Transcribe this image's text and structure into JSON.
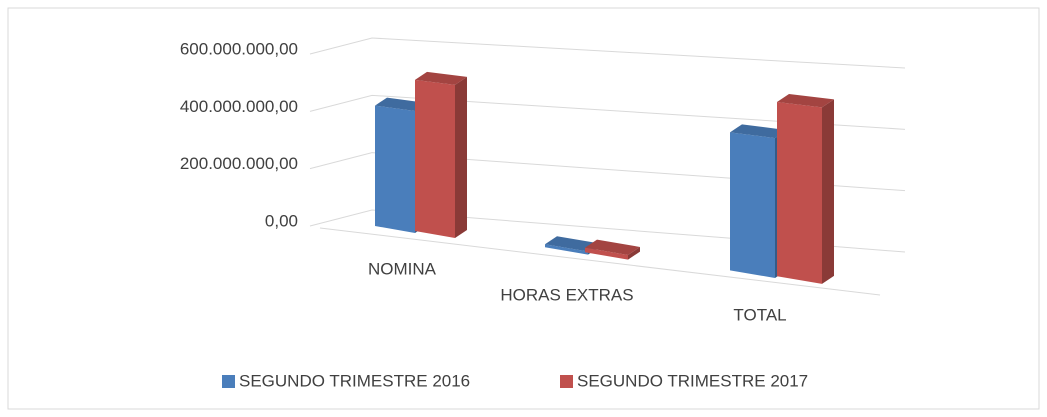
{
  "chart_data": {
    "type": "bar3d",
    "categories": [
      "NOMINA",
      "HORAS EXTRAS",
      "TOTAL"
    ],
    "series": [
      {
        "name": "SEGUNDO TRIMESTRE 2016",
        "color": "#4a7ebb",
        "values": [
          420000000,
          10000000,
          430000000
        ]
      },
      {
        "name": "SEGUNDO TRIMESTRE 2017",
        "color": "#c0504d",
        "values": [
          520000000,
          15000000,
          535000000
        ]
      }
    ],
    "ylim": [
      0,
      600000000
    ],
    "yticks": [
      {
        "value": 0,
        "label": "0,00"
      },
      {
        "value": 200000000,
        "label": "200.000.000,00"
      },
      {
        "value": 400000000,
        "label": "400.000.000,00"
      },
      {
        "value": 600000000,
        "label": "600.000.000,00"
      }
    ],
    "grid": true,
    "legend": "bottom"
  }
}
